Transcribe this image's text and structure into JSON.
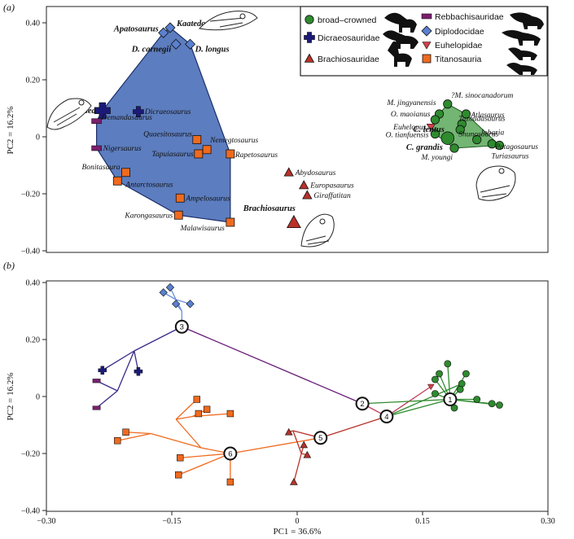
{
  "chart_data": [
    {
      "panel": "(a)",
      "type": "scatter",
      "ylabel": "PC2 = 16.2%",
      "ylim": [
        -0.4,
        0.4
      ],
      "xlim": [
        -0.3,
        0.3
      ],
      "yticks": [
        "0.40",
        "0.20",
        "0",
        "−0.20",
        "−0.40"
      ],
      "legend_position": "top-right",
      "legend": [
        {
          "key": "broad",
          "label": "broad–crowned"
        },
        {
          "key": "dicraeo",
          "label": "Dicraeosauridae"
        },
        {
          "key": "brachio",
          "label": "Brachiosauridae"
        },
        {
          "key": "rebbach",
          "label": "Rebbachisauridae"
        },
        {
          "key": "diplo",
          "label": "Diplodocidae"
        },
        {
          "key": "euhelop",
          "label": "Euhelopidae"
        },
        {
          "key": "titano",
          "label": "Titanosauria"
        }
      ],
      "colors": {
        "broad": "#2e8b2e",
        "dicraeo": "#1c1a78",
        "brachio": "#b8322a",
        "rebbach": "#7a1e6e",
        "diplo": "#5a80d0",
        "euhelop": "#d0404a",
        "titano": "#f06a1e",
        "diplo_hull": "#4a6fb8",
        "broad_hull": "#5aa85a"
      },
      "points": [
        {
          "label": "Kaatedocus",
          "group": "diplo",
          "x": -0.152,
          "y": 0.383,
          "bold": true
        },
        {
          "label": "Apatosaurus",
          "group": "diplo",
          "x": -0.16,
          "y": 0.365,
          "bold": true
        },
        {
          "label": "D. carnegii",
          "group": "diplo",
          "x": -0.145,
          "y": 0.325,
          "bold": true
        },
        {
          "label": "D. longus",
          "group": "diplo",
          "x": -0.128,
          "y": 0.325,
          "bold": true
        },
        {
          "label": "Suuwassea",
          "group": "dicraeo",
          "x": -0.233,
          "y": 0.092,
          "bold": true
        },
        {
          "label": "Dicraeosaurus",
          "group": "dicraeo",
          "x": -0.19,
          "y": 0.088,
          "bold": false
        },
        {
          "label": "Demandasaurus",
          "group": "rebbach",
          "x": -0.24,
          "y": 0.055,
          "bold": false
        },
        {
          "label": "Nigersaurus",
          "group": "rebbach",
          "x": -0.24,
          "y": -0.04,
          "bold": false
        },
        {
          "label": "Quaesitosaurus",
          "group": "titano",
          "x": -0.12,
          "y": -0.01,
          "bold": false
        },
        {
          "label": "Nemegtosaurus",
          "group": "titano",
          "x": -0.108,
          "y": -0.045,
          "bold": false
        },
        {
          "label": "Tapuiasaurus",
          "group": "titano",
          "x": -0.118,
          "y": -0.06,
          "bold": false
        },
        {
          "label": "Rapetosaurus",
          "group": "titano",
          "x": -0.08,
          "y": -0.06,
          "bold": false
        },
        {
          "label": "Bonitasaura",
          "group": "titano",
          "x": -0.205,
          "y": -0.125,
          "bold": false
        },
        {
          "label": "Antarctosaurus",
          "group": "titano",
          "x": -0.215,
          "y": -0.155,
          "bold": false
        },
        {
          "label": "Ampelosaurus",
          "group": "titano",
          "x": -0.14,
          "y": -0.215,
          "bold": false
        },
        {
          "label": "Karongasaurus",
          "group": "titano",
          "x": -0.142,
          "y": -0.275,
          "bold": false
        },
        {
          "label": "Malawisaurus",
          "group": "titano",
          "x": -0.08,
          "y": -0.3,
          "bold": false
        },
        {
          "label": "Abydosaurus",
          "group": "brachio",
          "x": -0.01,
          "y": -0.125,
          "bold": false
        },
        {
          "label": "Europasaurus",
          "group": "brachio",
          "x": 0.008,
          "y": -0.17,
          "bold": false
        },
        {
          "label": "Giraffatitan",
          "group": "brachio",
          "x": 0.012,
          "y": -0.205,
          "bold": false
        },
        {
          "label": "Brachiosaurus",
          "group": "brachio",
          "x": -0.004,
          "y": -0.3,
          "bold": true
        },
        {
          "label": "M. jingyanensis",
          "group": "broad",
          "x": 0.17,
          "y": 0.08,
          "bold": false
        },
        {
          "label": "?M. sinocanadorum",
          "group": "broad",
          "x": 0.18,
          "y": 0.115,
          "bold": false
        },
        {
          "label": "O. maoianus",
          "group": "broad",
          "x": 0.165,
          "y": 0.06,
          "bold": false
        },
        {
          "label": "Atlasaurus",
          "group": "broad",
          "x": 0.202,
          "y": 0.08,
          "bold": false
        },
        {
          "label": "Euhelopus",
          "group": "euhelop",
          "x": 0.16,
          "y": 0.035,
          "bold": false
        },
        {
          "label": "Tazoudasaurus",
          "group": "broad",
          "x": 0.197,
          "y": 0.045,
          "bold": false
        },
        {
          "label": "O. tianfuensis",
          "group": "broad",
          "x": 0.165,
          "y": 0.01,
          "bold": false
        },
        {
          "label": "Shunosaurus",
          "group": "broad",
          "x": 0.195,
          "y": 0.025,
          "bold": false
        },
        {
          "label": "C. lentus",
          "group": "broad",
          "x": 0.182,
          "y": 0.0,
          "bold": true
        },
        {
          "label": "C. grandis",
          "group": "broad",
          "x": 0.18,
          "y": -0.005,
          "bold": true
        },
        {
          "label": "Jobaria",
          "group": "broad",
          "x": 0.215,
          "y": -0.01,
          "bold": false
        },
        {
          "label": "M. youngi",
          "group": "broad",
          "x": 0.188,
          "y": -0.04,
          "bold": false
        },
        {
          "label": "Patagosaurus",
          "group": "broad",
          "x": 0.233,
          "y": -0.025,
          "bold": false
        },
        {
          "label": "Turiasaurus",
          "group": "broad",
          "x": 0.242,
          "y": -0.03,
          "bold": false
        }
      ]
    },
    {
      "panel": "(b)",
      "type": "scatter",
      "xlabel": "PC1 = 36.6%",
      "ylabel": "PC2 = 16.2%",
      "xlim": [
        -0.3,
        0.3
      ],
      "ylim": [
        -0.4,
        0.4
      ],
      "xticks": [
        "−0.30",
        "−0.15",
        "0",
        "0.15",
        "0.30"
      ],
      "yticks": [
        "0.40",
        "0.20",
        "0",
        "−0.20",
        "−0.40"
      ],
      "nodes": [
        {
          "id": "1",
          "x": 0.183,
          "y": -0.01
        },
        {
          "id": "2",
          "x": 0.078,
          "y": -0.025
        },
        {
          "id": "3",
          "x": -0.138,
          "y": 0.245
        },
        {
          "id": "4",
          "x": 0.107,
          "y": -0.07
        },
        {
          "id": "5",
          "x": 0.028,
          "y": -0.145
        },
        {
          "id": "6",
          "x": -0.08,
          "y": -0.2
        }
      ]
    }
  ]
}
